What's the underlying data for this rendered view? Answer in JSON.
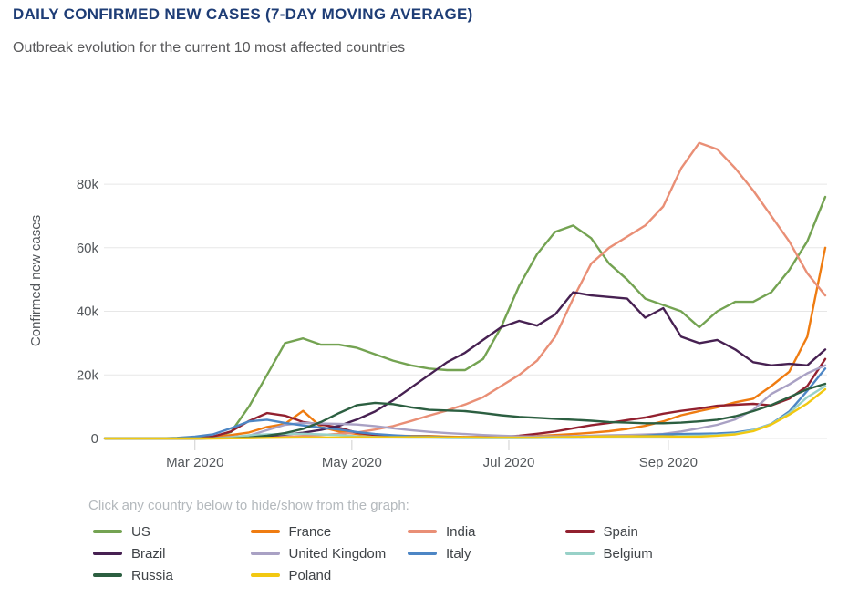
{
  "header": {
    "title": "DAILY CONFIRMED NEW CASES (7-DAY MOVING AVERAGE)",
    "subtitle": "Outbreak evolution for the current 10 most affected countries"
  },
  "legend": {
    "hint": "Click any country below to hide/show from the graph:"
  },
  "chart_data": {
    "type": "line",
    "title": "DAILY CONFIRMED NEW CASES (7-DAY MOVING AVERAGE)",
    "xlabel": "",
    "ylabel": "Confirmed new cases",
    "values_unit": "thousands of cases",
    "grid": "horizontal",
    "legend_position": "bottom",
    "ylim": [
      0,
      97.8
    ],
    "y_ticks": [
      0,
      20,
      40,
      60,
      80
    ],
    "y_tick_labels": [
      "0",
      "20k",
      "40k",
      "60k",
      "80k"
    ],
    "x_tick_labels": [
      "Mar 2020",
      "May 2020",
      "Jul 2020",
      "Sep 2020"
    ],
    "x_tick_positions": [
      5,
      13.714,
      22.429,
      31.286
    ],
    "x": [
      "Jan 26",
      "Feb 2",
      "Feb 9",
      "Feb 16",
      "Feb 23",
      "Mar 1",
      "Mar 8",
      "Mar 15",
      "Mar 22",
      "Mar 29",
      "Apr 5",
      "Apr 12",
      "Apr 19",
      "Apr 26",
      "May 3",
      "May 10",
      "May 17",
      "May 24",
      "May 31",
      "Jun 7",
      "Jun 14",
      "Jun 21",
      "Jun 28",
      "Jul 5",
      "Jul 12",
      "Jul 19",
      "Jul 26",
      "Aug 2",
      "Aug 9",
      "Aug 16",
      "Aug 23",
      "Aug 30",
      "Sep 6",
      "Sep 13",
      "Sep 20",
      "Sep 27",
      "Oct 4",
      "Oct 11",
      "Oct 18",
      "Oct 25",
      "Nov 1"
    ],
    "series": [
      {
        "name": "US",
        "color": "#74a352",
        "values": [
          0,
          0,
          0,
          0,
          0.05,
          0.1,
          0.5,
          2,
          10,
          20,
          30,
          31.5,
          29.5,
          29.5,
          28.5,
          26.5,
          24.5,
          23,
          22,
          21.5,
          21.5,
          25,
          35,
          48,
          58,
          65,
          67,
          63,
          55,
          50,
          44,
          42,
          40,
          35,
          40,
          43,
          43,
          46,
          53,
          62,
          76
        ]
      },
      {
        "name": "France",
        "color": "#ef7c11",
        "values": [
          0,
          0,
          0,
          0,
          0,
          0.1,
          0.5,
          1.1,
          1.9,
          3.6,
          4.6,
          8.7,
          3.6,
          2.2,
          1.4,
          1,
          0.9,
          0.8,
          0.8,
          0.6,
          0.5,
          0.5,
          0.6,
          0.7,
          0.8,
          1.1,
          1.4,
          1.8,
          2.3,
          3,
          4,
          5.4,
          7.3,
          8.6,
          9.8,
          11.4,
          12.5,
          16.5,
          21,
          32,
          60
        ]
      },
      {
        "name": "India",
        "color": "#e98f76",
        "values": [
          0,
          0,
          0,
          0,
          0,
          0,
          0.05,
          0.1,
          0.15,
          0.25,
          0.5,
          0.8,
          1.1,
          1.5,
          1.9,
          2.8,
          3.9,
          5.5,
          7.2,
          8.8,
          10.7,
          13,
          16.5,
          20,
          24.5,
          32,
          44,
          55,
          60,
          63.5,
          67,
          73,
          85,
          93,
          91,
          85,
          78,
          70,
          62,
          52,
          45
        ]
      },
      {
        "name": "Spain",
        "color": "#92202f",
        "values": [
          0,
          0,
          0,
          0,
          0,
          0.1,
          0.6,
          2.2,
          5.5,
          8,
          7.2,
          5.2,
          4.4,
          3.4,
          1.8,
          1.1,
          0.8,
          0.6,
          0.5,
          0.4,
          0.35,
          0.35,
          0.5,
          0.9,
          1.5,
          2.2,
          3.2,
          4.2,
          4.9,
          5.8,
          6.6,
          7.8,
          8.7,
          9.4,
          10.3,
          10.6,
          10.9,
          10.4,
          12.5,
          16.5,
          25
        ]
      },
      {
        "name": "Brazil",
        "color": "#472152",
        "values": [
          0,
          0,
          0,
          0,
          0,
          0,
          0.1,
          0.2,
          0.4,
          0.8,
          1.2,
          1.8,
          2.7,
          4,
          6,
          8.5,
          12,
          16,
          20,
          24,
          27,
          31,
          35,
          37,
          35.5,
          39,
          46,
          45,
          44.5,
          44,
          38,
          41,
          32,
          30,
          31,
          28,
          24,
          23,
          23.5,
          23,
          28
        ]
      },
      {
        "name": "United Kingdom",
        "color": "#a9a1c4",
        "values": [
          0,
          0,
          0,
          0,
          0,
          0,
          0.1,
          0.5,
          0.9,
          2.6,
          4.3,
          4.9,
          4.7,
          4.6,
          4.4,
          3.9,
          3.2,
          2.6,
          2.1,
          1.7,
          1.4,
          1.1,
          0.9,
          0.7,
          0.65,
          0.7,
          0.75,
          0.85,
          1,
          1.1,
          1.25,
          1.45,
          2.2,
          3.2,
          4.3,
          6,
          9,
          14,
          17,
          20.5,
          23
        ]
      },
      {
        "name": "Italy",
        "color": "#4d86c5",
        "values": [
          0,
          0,
          0,
          0,
          0.2,
          0.6,
          1.3,
          3.2,
          5.4,
          5.9,
          4.9,
          4.1,
          3.4,
          2.8,
          2,
          1.4,
          1,
          0.7,
          0.6,
          0.4,
          0.3,
          0.25,
          0.2,
          0.2,
          0.2,
          0.25,
          0.25,
          0.35,
          0.45,
          0.6,
          0.9,
          1.3,
          1.4,
          1.5,
          1.6,
          1.9,
          2.7,
          4.6,
          8.5,
          15,
          22
        ]
      },
      {
        "name": "Belgium",
        "color": "#98d1c8",
        "values": [
          0,
          0,
          0,
          0,
          0,
          0.05,
          0.1,
          0.35,
          1,
          1.3,
          1.4,
          1.5,
          1.3,
          1.1,
          0.7,
          0.5,
          0.35,
          0.3,
          0.25,
          0.15,
          0.1,
          0.1,
          0.1,
          0.1,
          0.15,
          0.2,
          0.3,
          0.45,
          0.55,
          0.6,
          0.5,
          0.5,
          0.8,
          0.9,
          1.1,
          1.5,
          2.6,
          4.5,
          8,
          13,
          16.5
        ]
      },
      {
        "name": "Russia",
        "color": "#2c5f41",
        "values": [
          0,
          0,
          0,
          0,
          0,
          0,
          0.05,
          0.1,
          0.3,
          0.9,
          1.7,
          3,
          5.2,
          8,
          10.5,
          11.2,
          10.8,
          9.8,
          9,
          8.8,
          8.6,
          8,
          7.3,
          6.8,
          6.5,
          6.2,
          5.9,
          5.6,
          5.2,
          5,
          4.8,
          4.8,
          5,
          5.4,
          5.9,
          7,
          8.6,
          10.5,
          13,
          15.5,
          17.2
        ]
      },
      {
        "name": "Poland",
        "color": "#f2c811",
        "values": [
          0,
          0,
          0,
          0,
          0,
          0,
          0,
          0.05,
          0.1,
          0.2,
          0.3,
          0.35,
          0.35,
          0.35,
          0.4,
          0.4,
          0.4,
          0.4,
          0.4,
          0.35,
          0.35,
          0.3,
          0.3,
          0.3,
          0.3,
          0.4,
          0.5,
          0.6,
          0.65,
          0.7,
          0.7,
          0.7,
          0.55,
          0.6,
          0.9,
          1.3,
          2.3,
          4.4,
          7.5,
          11,
          15.5
        ]
      }
    ]
  }
}
